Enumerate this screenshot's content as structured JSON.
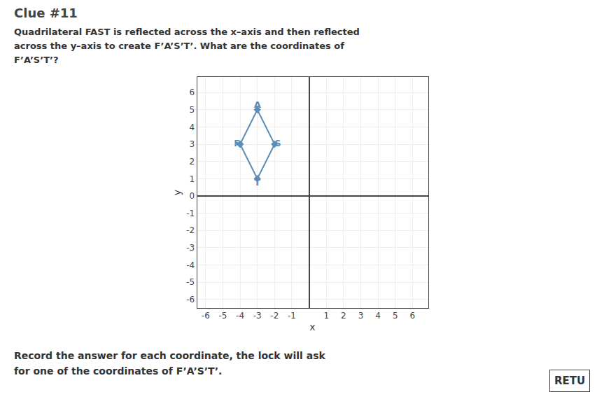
{
  "chart_data": {
    "type": "line",
    "title": "Clue #11",
    "subtitle": [
      "Quadrilateral FAST is reflected across the x–axis and then reflected",
      "across the y–axis to create F’A’S’T’. What are the coordinates of",
      "F’A’S’T’?"
    ],
    "annotations": [
      "Record the answer for each coordinate, the lock will ask",
      "for one of the coordinates of F’A’S’T’.",
      "RETU"
    ],
    "x_label": "x",
    "y_label": "y",
    "labels": [
      "F",
      "A",
      "S",
      "T"
    ],
    "x": [
      -4,
      -3,
      -2,
      -3
    ],
    "values": [
      3,
      5,
      3,
      1
    ],
    "color": "#5b8db8",
    "marker": "diamond",
    "xlim": [
      -6.5,
      6.9
    ],
    "ylim": [
      -6.5,
      6.9
    ],
    "xticks": [
      -6,
      -5,
      -4,
      -3,
      -2,
      -1,
      1,
      2,
      3,
      4,
      5,
      6
    ],
    "yticks": [
      -6,
      -5,
      -4,
      -3,
      -2,
      -1,
      0,
      1,
      2,
      3,
      4,
      5,
      6
    ],
    "grid": true
  }
}
